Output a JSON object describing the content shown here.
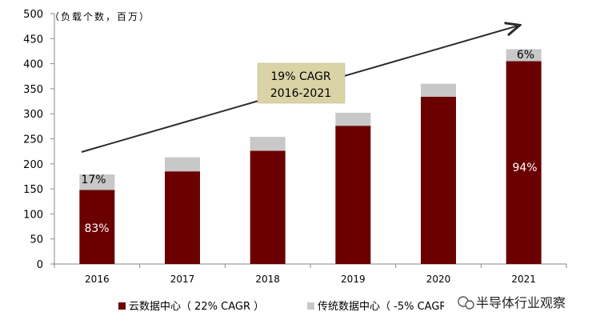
{
  "chart_data": {
    "type": "bar",
    "stacked": true,
    "unit_label": "（负载个数，百万）",
    "categories": [
      "2016",
      "2017",
      "2018",
      "2019",
      "2020",
      "2021"
    ],
    "series": [
      {
        "name": "云数据中心（22% CAGR）",
        "color": "#6b0000",
        "values": [
          148,
          185,
          226,
          276,
          334,
          405
        ]
      },
      {
        "name": "传统数据中心（-5% CAGR）",
        "color": "#c8c8c8",
        "values": [
          31,
          28,
          28,
          26,
          26,
          24
        ]
      }
    ],
    "ylim": [
      0,
      500
    ],
    "yticks": [
      0,
      50,
      100,
      150,
      200,
      250,
      300,
      350,
      400,
      450,
      500
    ],
    "grid": false,
    "annotations": {
      "cagr_line1": "19%  CAGR",
      "cagr_line2": "2016-2021",
      "first_top": "17%",
      "first_bottom": "83%",
      "last_top": "6%",
      "last_bottom": "94%"
    },
    "legend": {
      "position": "bottom",
      "cloud": "云数据中心（ 22% CAGR ）",
      "traditional": "传统数据中心（ -5% CAGR"
    }
  },
  "watermark": {
    "text": "半导体行业观察",
    "icon": "wechat-icon"
  }
}
